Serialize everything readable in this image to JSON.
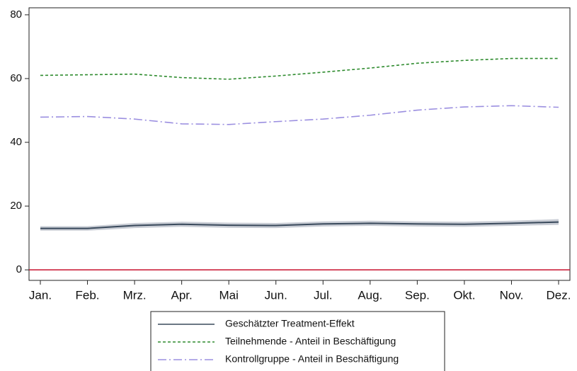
{
  "chart_data": {
    "type": "line",
    "categories": [
      "Jan.",
      "Feb.",
      "Mrz.",
      "Apr.",
      "Mai",
      "Jun.",
      "Jul.",
      "Aug.",
      "Sep.",
      "Okt.",
      "Nov.",
      "Dez."
    ],
    "series": [
      {
        "name": "Geschätzter Treatment-Effekt",
        "color": "#3a4a5c",
        "dash": "none",
        "values": [
          13,
          13,
          13.9,
          14.3,
          14,
          13.9,
          14.4,
          14.6,
          14.4,
          14.3,
          14.6,
          15.0
        ],
        "band": {
          "color": "#c8ccd4",
          "lower": [
            12.3,
            12.3,
            13.1,
            13.5,
            13.2,
            13.1,
            13.6,
            13.8,
            13.6,
            13.5,
            13.8,
            14.1
          ],
          "upper": [
            13.7,
            13.7,
            14.7,
            15.1,
            14.8,
            14.7,
            15.2,
            15.4,
            15.2,
            15.1,
            15.4,
            15.9
          ]
        }
      },
      {
        "name": "Teilnehmende - Anteil in Beschäftigung",
        "color": "#2e8b2e",
        "dash": "4 3",
        "values": [
          61,
          61.2,
          61.4,
          60.3,
          59.8,
          60.8,
          62,
          63.3,
          64.8,
          65.7,
          66.3,
          66.3
        ]
      },
      {
        "name": "Kontrollgruppe - Anteil in Beschäftigung",
        "color": "#9b8fe0",
        "dash": "12 4 2 4",
        "values": [
          47.9,
          48.1,
          47.3,
          45.8,
          45.6,
          46.5,
          47.3,
          48.5,
          50.1,
          51.1,
          51.5,
          51.0
        ]
      }
    ],
    "reference_line": {
      "value": 0,
      "color": "#c8102e"
    },
    "ylim": [
      -3.3,
      82.2
    ],
    "yticks": [
      0,
      20,
      40,
      60,
      80
    ],
    "grid": false,
    "legend": "bottom"
  }
}
